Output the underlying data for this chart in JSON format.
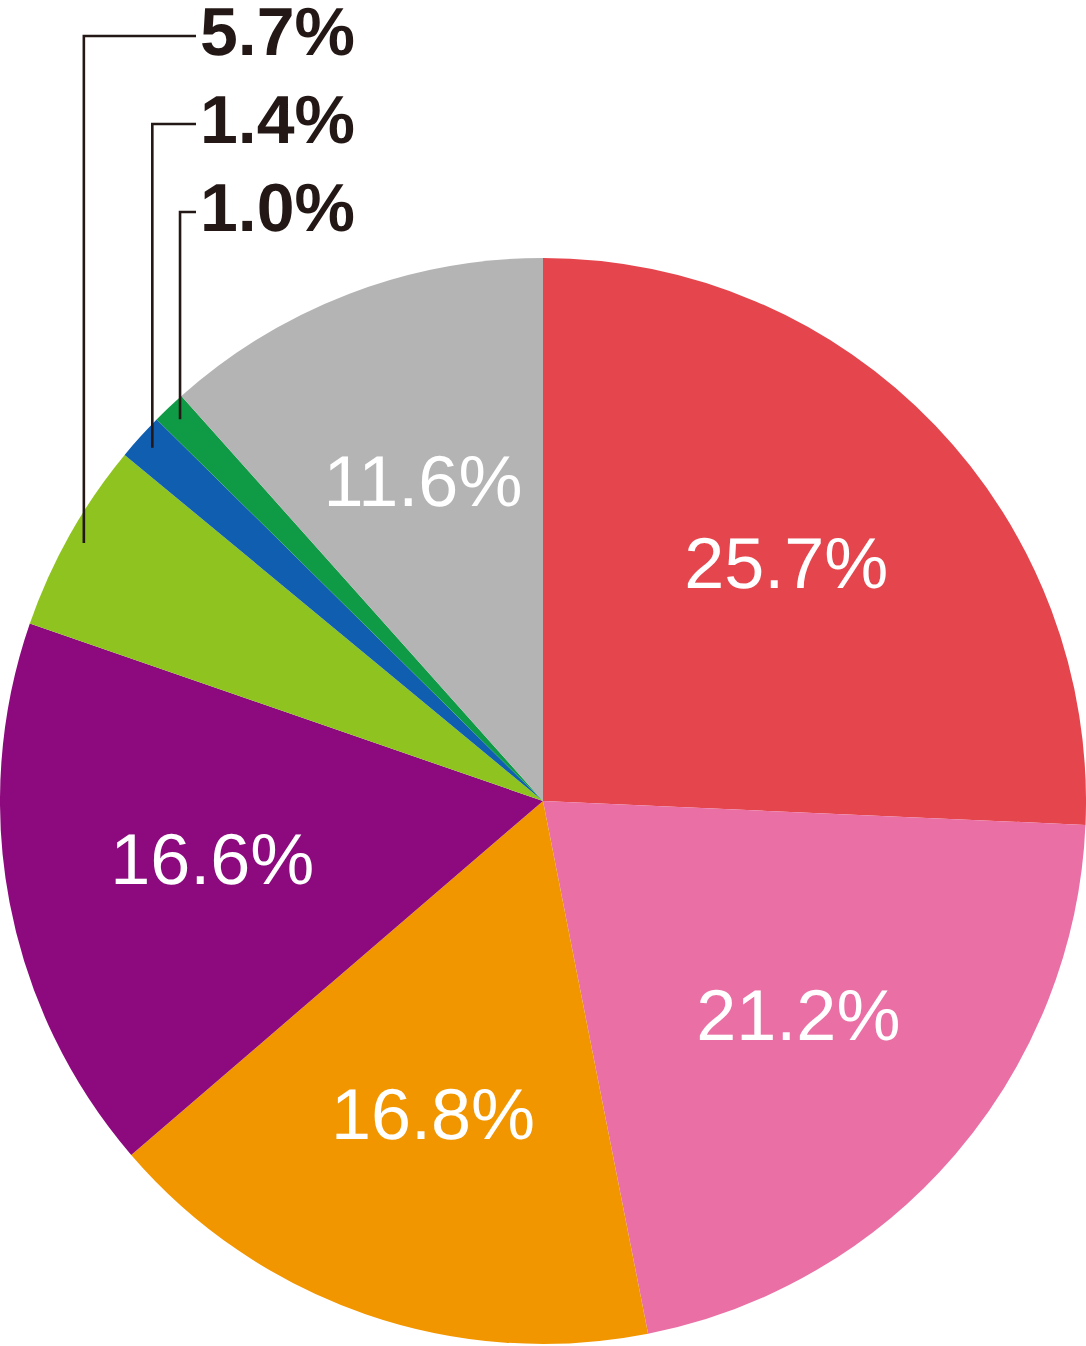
{
  "chart_data": {
    "type": "pie",
    "categories": [
      null,
      null,
      null,
      null,
      null,
      null,
      null,
      null
    ],
    "values": [
      25.7,
      21.2,
      16.8,
      16.6,
      5.7,
      1.4,
      1.0,
      11.6
    ],
    "colors": [
      "#e5454d",
      "#ea6fa5",
      "#f29600",
      "#8c0a7e",
      "#8fc31f",
      "#0f5eb0",
      "#0f9b46",
      "#b4b4b4"
    ],
    "value_labels": [
      "25.7%",
      "21.2%",
      "16.8%",
      "16.6%",
      "5.7%",
      "1.4%",
      "1.0%",
      "11.6%"
    ],
    "legend": false
  }
}
